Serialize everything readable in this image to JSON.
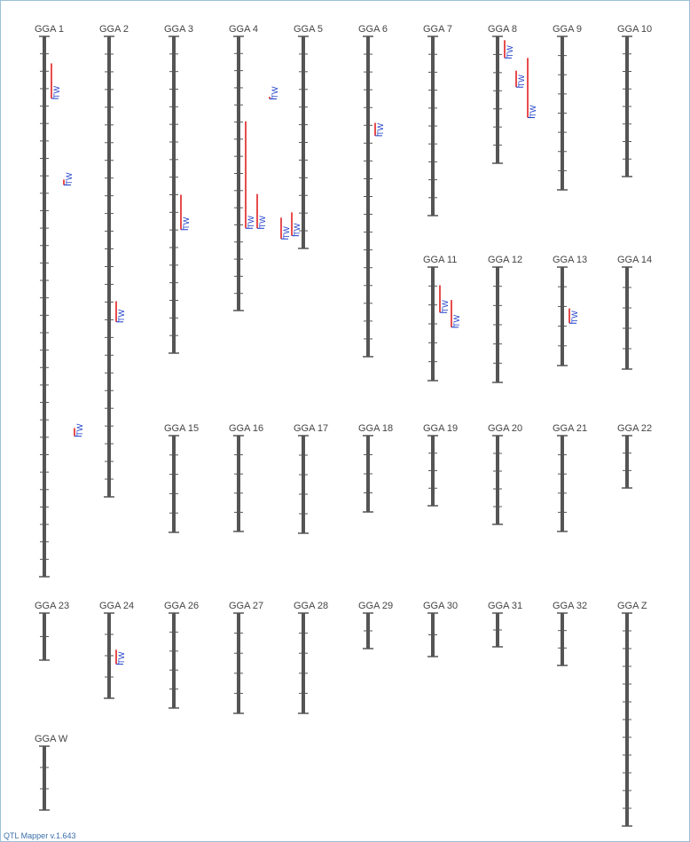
{
  "app": {
    "version_text": "QTL Mapper v.1.643"
  },
  "colors": {
    "chromosome": "#555555",
    "qtl_bar": "#e02020",
    "qtl_label": "#1a3cc8",
    "label": "#444444"
  },
  "chromosomes": [
    {
      "name": "GGA 1",
      "ticks": 31,
      "qtls": [
        {
          "label": "TW",
          "from": 0.05,
          "to": 0.115,
          "offset": 8
        },
        {
          "label": "TW",
          "from": 0.265,
          "to": 0.275,
          "offset": 22
        },
        {
          "label": "TW",
          "from": 0.725,
          "to": 0.74,
          "offset": 34
        }
      ]
    },
    {
      "name": "GGA 2",
      "ticks": 26,
      "qtls": [
        {
          "label": "TW",
          "from": 0.575,
          "to": 0.62,
          "offset": 8
        }
      ]
    },
    {
      "name": "GGA 3",
      "ticks": 18,
      "qtls": [
        {
          "label": "TW",
          "from": 0.5,
          "to": 0.61,
          "offset": 8
        }
      ]
    },
    {
      "name": "GGA 4",
      "ticks": 16,
      "qtls": [
        {
          "label": "TW",
          "from": 0.31,
          "to": 0.7,
          "offset": 8
        },
        {
          "label": "TW",
          "from": 0.575,
          "to": 0.7,
          "offset": 21
        }
      ]
    },
    {
      "name": "GGA 5",
      "ticks": 12,
      "qtls": [
        {
          "label": "TW",
          "from": 0.285,
          "to": 0.295,
          "offset": -38
        },
        {
          "label": "TW",
          "from": 0.855,
          "to": 0.955,
          "offset": -25
        },
        {
          "label": "TW",
          "from": 0.83,
          "to": 0.94,
          "offset": -13
        }
      ]
    },
    {
      "name": "GGA 6",
      "ticks": 18,
      "qtls": [
        {
          "label": "TW",
          "from": 0.27,
          "to": 0.31,
          "offset": 8
        }
      ]
    },
    {
      "name": "GGA 7",
      "ticks": 10,
      "qtls": []
    },
    {
      "name": "GGA 8",
      "ticks": 7,
      "qtls": [
        {
          "label": "TW",
          "from": 0.03,
          "to": 0.17,
          "offset": 8
        },
        {
          "label": "TW",
          "from": 0.27,
          "to": 0.4,
          "offset": 21
        },
        {
          "label": "TW",
          "from": 0.17,
          "to": 0.64,
          "offset": 34
        }
      ]
    },
    {
      "name": "GGA 9",
      "ticks": 8,
      "qtls": []
    },
    {
      "name": "GGA 10",
      "ticks": 8,
      "qtls": []
    },
    {
      "name": "GGA 11",
      "ticks": 6,
      "qtls": [
        {
          "label": "TW",
          "from": 0.16,
          "to": 0.4,
          "offset": 8
        },
        {
          "label": "TW",
          "from": 0.29,
          "to": 0.53,
          "offset": 21
        }
      ]
    },
    {
      "name": "GGA 12",
      "ticks": 6,
      "qtls": []
    },
    {
      "name": "GGA 13",
      "ticks": 5,
      "qtls": [
        {
          "label": "TW",
          "from": 0.42,
          "to": 0.57,
          "offset": 8
        }
      ]
    },
    {
      "name": "GGA 14",
      "ticks": 5,
      "qtls": []
    },
    {
      "name": "GGA 15",
      "ticks": 5,
      "qtls": []
    },
    {
      "name": "GGA 16",
      "ticks": 5,
      "qtls": []
    },
    {
      "name": "GGA 17",
      "ticks": 5,
      "qtls": []
    },
    {
      "name": "GGA 18",
      "ticks": 4,
      "qtls": []
    },
    {
      "name": "GGA 19",
      "ticks": 4,
      "qtls": []
    },
    {
      "name": "GGA 20",
      "ticks": 5,
      "qtls": []
    },
    {
      "name": "GGA 21",
      "ticks": 5,
      "qtls": []
    },
    {
      "name": "GGA 22",
      "ticks": 3,
      "qtls": []
    },
    {
      "name": "GGA 23",
      "ticks": 2,
      "qtls": []
    },
    {
      "name": "GGA 24",
      "ticks": 4,
      "qtls": [
        {
          "label": "TW",
          "from": 0.43,
          "to": 0.6,
          "offset": 8
        }
      ]
    },
    {
      "name": "GGA 26",
      "ticks": 5,
      "qtls": []
    },
    {
      "name": "GGA 27",
      "ticks": 5,
      "qtls": []
    },
    {
      "name": "GGA 28",
      "ticks": 5,
      "qtls": []
    },
    {
      "name": "GGA 29",
      "ticks": 2,
      "qtls": []
    },
    {
      "name": "GGA 30",
      "ticks": 2,
      "qtls": []
    },
    {
      "name": "GGA 31",
      "ticks": 2,
      "qtls": []
    },
    {
      "name": "GGA 32",
      "ticks": 3,
      "qtls": []
    },
    {
      "name": "GGA Z",
      "ticks": 12,
      "qtls": []
    },
    {
      "name": "GGA W",
      "ticks": 3,
      "qtls": []
    }
  ]
}
